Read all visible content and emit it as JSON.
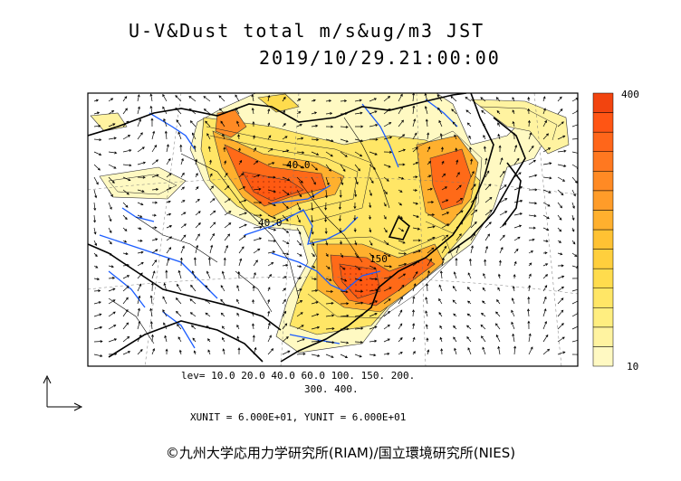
{
  "title": {
    "line1": "U-V&Dust total m/s&ug/m3 JST",
    "line2": "2019/10/29.21:00:00"
  },
  "colorbar": {
    "max_label": "400",
    "min_label": "10",
    "colors": [
      "#fff9c2",
      "#fff3a0",
      "#ffee80",
      "#ffe666",
      "#ffdc4d",
      "#ffcf3d",
      "#ffc233",
      "#ffb02e",
      "#ff9c29",
      "#ff8a24",
      "#ff7820",
      "#ff661a",
      "#ff5514",
      "#f2440f"
    ]
  },
  "contour_labels": [
    "40.0",
    "40.0",
    "150"
  ],
  "legend": {
    "levels_line1": "lev= 10.0 20.0 40.0 60.0 100. 150. 200.",
    "levels_line2": "300. 400.",
    "units": "XUNIT = 6.000E+01, YUNIT = 6.000E+01"
  },
  "copyright": "©九州大学応用力学研究所(RIAM)/国立環境研究所(NIES)",
  "icons": {
    "vector_scale": "vector-scale-icon"
  }
}
